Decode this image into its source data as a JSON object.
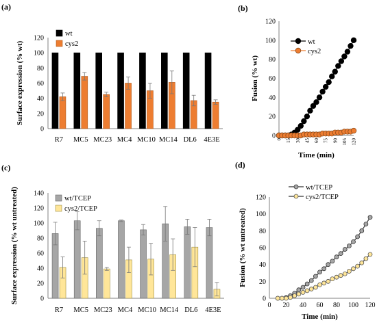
{
  "panel_labels": [
    "(a)",
    "(b)",
    "(c)",
    "(d)"
  ],
  "colors": {
    "wt": "#000000",
    "cys2": "#ed7d31",
    "wt_tcep": "#a6a6a6",
    "cys2_tcep": "#ffe699",
    "axis": "#808080",
    "text": "#000000"
  },
  "chart_data": [
    {
      "panel": "(a)",
      "type": "bar",
      "ylabel": "Surface expression (% wt)",
      "ylim": [
        0,
        120
      ],
      "yticks": [
        0,
        20,
        40,
        60,
        80,
        100,
        120
      ],
      "categories": [
        "R7",
        "MC5",
        "MC23",
        "MC4",
        "MC10",
        "MC14",
        "DL6",
        "4E3E"
      ],
      "series": [
        {
          "name": "wt",
          "values": [
            100,
            100,
            100,
            100,
            100,
            100,
            100,
            100
          ],
          "errors": [
            0,
            0,
            0,
            0,
            0,
            0,
            0,
            0
          ]
        },
        {
          "name": "cys2",
          "values": [
            42,
            69,
            45,
            60,
            50,
            61,
            37,
            35
          ],
          "errors": [
            5,
            5,
            3,
            8,
            10,
            15,
            7,
            3
          ]
        }
      ],
      "legend": "top-left"
    },
    {
      "panel": "(b)",
      "type": "line",
      "xlabel": "Time (min)",
      "ylabel": "Fusion (% wt)",
      "xlim": [
        0,
        120
      ],
      "ylim": [
        0,
        120
      ],
      "xticks": [
        0,
        15,
        30,
        45,
        60,
        75,
        90,
        105,
        120
      ],
      "yticks": [
        0,
        20,
        40,
        60,
        80,
        100,
        120
      ],
      "x": [
        0,
        5,
        10,
        15,
        20,
        25,
        30,
        35,
        40,
        45,
        50,
        55,
        60,
        65,
        70,
        75,
        80,
        85,
        90,
        95,
        100,
        105,
        110,
        115,
        120
      ],
      "series": [
        {
          "name": "wt",
          "values": [
            0,
            0,
            0,
            0,
            1,
            3,
            6,
            10,
            15,
            20,
            26,
            31,
            35,
            40,
            46,
            51,
            56,
            62,
            67,
            73,
            78,
            83,
            88,
            94,
            100
          ]
        },
        {
          "name": "cys2",
          "values": [
            0,
            0,
            0,
            0,
            0,
            0,
            0,
            0,
            1,
            1,
            1,
            1,
            1,
            1,
            2,
            2,
            2,
            2,
            3,
            3,
            3,
            4,
            4,
            4,
            5
          ]
        }
      ],
      "legend": "top-left"
    },
    {
      "panel": "(c)",
      "type": "bar",
      "ylabel": "Surface expression (% wt untreated)",
      "ylim": [
        0,
        140
      ],
      "yticks": [
        0,
        20,
        40,
        60,
        80,
        100,
        120,
        140
      ],
      "categories": [
        "R7",
        "MC5",
        "MC23",
        "MC4",
        "MC10",
        "MC14",
        "DL6",
        "4E3E"
      ],
      "series": [
        {
          "name": "wt/TCEP",
          "values": [
            86,
            103,
            93,
            103,
            91,
            99,
            95,
            94
          ],
          "errors": [
            15,
            12,
            10,
            1,
            7,
            23,
            10,
            11
          ]
        },
        {
          "name": "cys2/TCEP",
          "values": [
            41,
            54,
            39,
            51,
            52,
            58,
            68,
            12
          ],
          "errors": [
            14,
            22,
            2,
            17,
            21,
            21,
            26,
            9
          ]
        }
      ],
      "legend": "top-left"
    },
    {
      "panel": "(d)",
      "type": "line",
      "xlabel": "Time (min)",
      "ylabel": "Fusion (% wt untreated)",
      "xlim": [
        0,
        120
      ],
      "ylim": [
        0,
        120
      ],
      "xticks": [
        0,
        20,
        40,
        60,
        80,
        100,
        120
      ],
      "yticks": [
        0,
        20,
        40,
        60,
        80,
        100,
        120
      ],
      "x": [
        10,
        15,
        20,
        25,
        30,
        35,
        40,
        45,
        50,
        55,
        60,
        65,
        70,
        75,
        80,
        85,
        90,
        95,
        100,
        105,
        110,
        115,
        120
      ],
      "series": [
        {
          "name": "wt/TCEP",
          "values": [
            0,
            0,
            1,
            3,
            6,
            10,
            13,
            17,
            21,
            26,
            31,
            35,
            40,
            44,
            49,
            53,
            58,
            62,
            67,
            73,
            80,
            88,
            96
          ]
        },
        {
          "name": "cys2/TCEP",
          "values": [
            0,
            0,
            0,
            1,
            3,
            5,
            7,
            9,
            11,
            13,
            16,
            18,
            20,
            23,
            25,
            27,
            29,
            32,
            35,
            38,
            42,
            47,
            52
          ]
        }
      ],
      "legend": "top-left"
    }
  ]
}
